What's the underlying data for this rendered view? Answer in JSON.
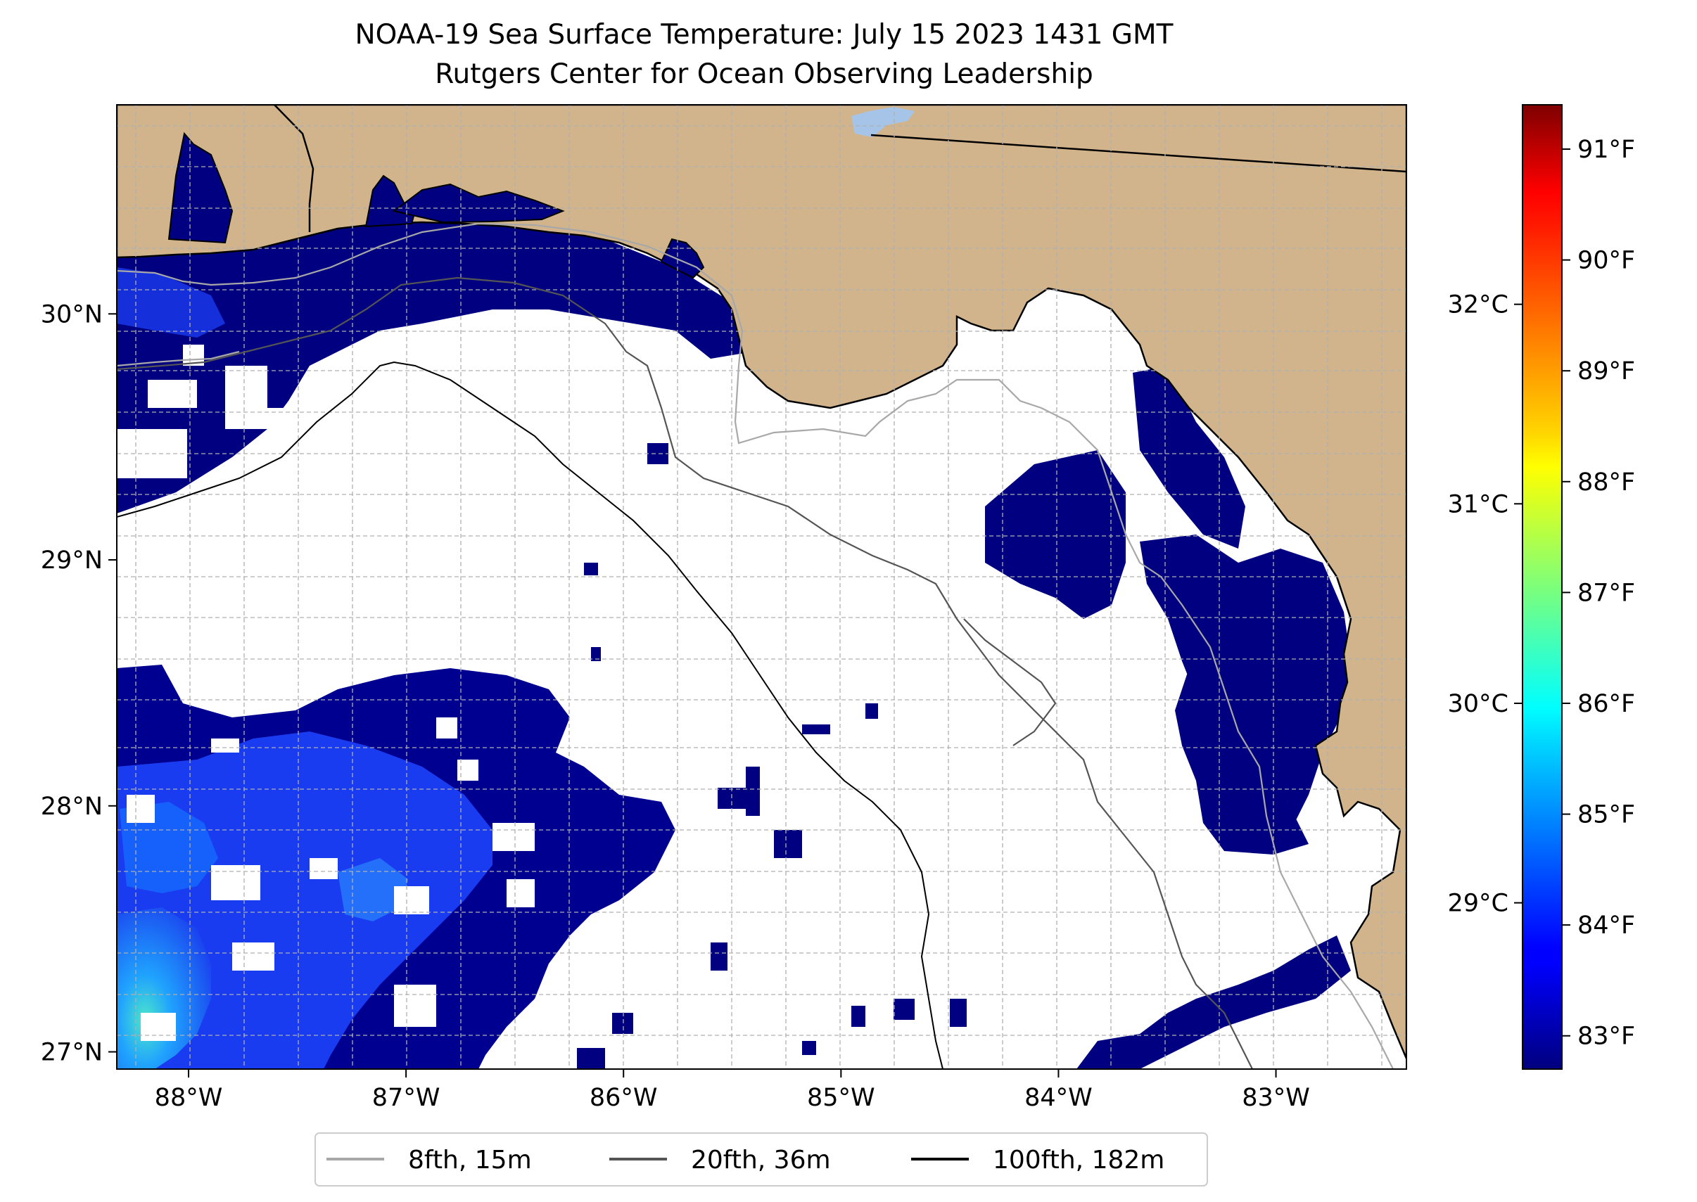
{
  "title": {
    "line1": "NOAA-19 Sea Surface Temperature: July 15 2023 1431 GMT",
    "line2": "Rutgers Center for Ocean Observing Leadership"
  },
  "map": {
    "lon_range": [
      -88.33,
      -82.4
    ],
    "lat_range": [
      26.93,
      30.85
    ],
    "lon_ticks": [
      {
        "value": -88,
        "label": "88°W"
      },
      {
        "value": -87,
        "label": "87°W"
      },
      {
        "value": -86,
        "label": "86°W"
      },
      {
        "value": -85,
        "label": "85°W"
      },
      {
        "value": -84,
        "label": "84°W"
      },
      {
        "value": -83,
        "label": "83°W"
      }
    ],
    "lat_ticks": [
      {
        "value": 27,
        "label": "27°N"
      },
      {
        "value": 28,
        "label": "28°N"
      },
      {
        "value": 29,
        "label": "29°N"
      },
      {
        "value": 30,
        "label": "30°N"
      }
    ],
    "land_color": "#d2b48c",
    "no_data_color": "#ffffff",
    "grid_color": "#b0b0b0",
    "lake_color": "#a6c4e8"
  },
  "legend": {
    "items": [
      {
        "label": "8fth, 15m",
        "color": "#a8a8a8"
      },
      {
        "label": "20fth, 36m",
        "color": "#555555"
      },
      {
        "label": "100fth, 182m",
        "color": "#000000"
      }
    ]
  },
  "colorbar": {
    "colormap": "jet",
    "range_f": [
      82.7,
      91.4
    ],
    "fahrenheit_ticks": [
      {
        "value": 83,
        "label": "83°F"
      },
      {
        "value": 84,
        "label": "84°F"
      },
      {
        "value": 85,
        "label": "85°F"
      },
      {
        "value": 86,
        "label": "86°F"
      },
      {
        "value": 87,
        "label": "87°F"
      },
      {
        "value": 88,
        "label": "88°F"
      },
      {
        "value": 89,
        "label": "89°F"
      },
      {
        "value": 90,
        "label": "90°F"
      },
      {
        "value": 91,
        "label": "91°F"
      }
    ],
    "celsius_ticks": [
      {
        "value": 29,
        "label": "29°C"
      },
      {
        "value": 30,
        "label": "30°C"
      },
      {
        "value": 31,
        "label": "31°C"
      },
      {
        "value": 32,
        "label": "32°C"
      }
    ]
  }
}
